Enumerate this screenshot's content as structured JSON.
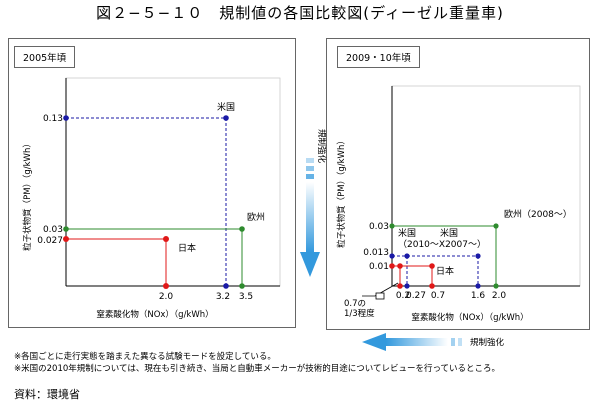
{
  "title": "図２−５−１０　規制値の各国比較図(ディーゼル重量車)",
  "colors": {
    "us": "#1a1aa6",
    "eu": "#2e8b2e",
    "jp": "#e01818",
    "arrow": "#3399dd"
  },
  "chart_data": [
    {
      "type": "scatter",
      "period_label": "2005年頃",
      "xlabel": "窒素酸化物（NOx）（g/kWh）",
      "ylabel": "粒子状物質（PM）（g/kWh）",
      "x_ticks": [
        "2.0",
        "3.2",
        "3.5"
      ],
      "y_ticks": [
        "0.13",
        "0.03",
        "0.027"
      ],
      "series": [
        {
          "name": "米国",
          "x": 3.2,
          "y": 0.13
        },
        {
          "name": "欧州",
          "x": 3.5,
          "y": 0.03
        },
        {
          "name": "日本",
          "x": 2.0,
          "y": 0.027
        }
      ]
    },
    {
      "type": "scatter",
      "period_label": "2009・10年頃",
      "xlabel": "窒素酸化物（NOx）（g/kWh）",
      "ylabel": "粒子状物質（PM）（g/kWh）",
      "x_ticks": [
        "0.2",
        "0.27",
        "0.7",
        "1.6",
        "2.0"
      ],
      "y_ticks": [
        "0.03",
        "0.013",
        "0.01"
      ],
      "series": [
        {
          "name": "欧州（2008〜）",
          "x": 2.0,
          "y": 0.03
        },
        {
          "name": "米国（2010〜）",
          "x": 0.27,
          "y": 0.013
        },
        {
          "name": "米国（2007〜）",
          "x": 1.6,
          "y": 0.013
        },
        {
          "name": "日本",
          "x": 0.7,
          "y": 0.01
        }
      ],
      "annotations": [
        "0.7の1/3程度"
      ]
    }
  ],
  "labels": {
    "us": "米国",
    "eu": "欧州",
    "jp": "日本",
    "eu_2008": "欧州（2008〜）",
    "us_2010": "米国",
    "us_2007": "米国",
    "us_period": "（2010〜X2007〜）",
    "callout_1": "0.7の",
    "callout_2": "1/3程度",
    "strengthen_v": "規制強化",
    "strengthen_h": "規制強化"
  },
  "notes": [
    "※各国ごとに走行実態を踏まえた異なる試験モードを設定している。",
    "※米国の2010年規制については、現在も引き続き、当局と自動車メーカーが技術的目途についてレビューを行っているところ。"
  ],
  "source": "資料：環境省"
}
